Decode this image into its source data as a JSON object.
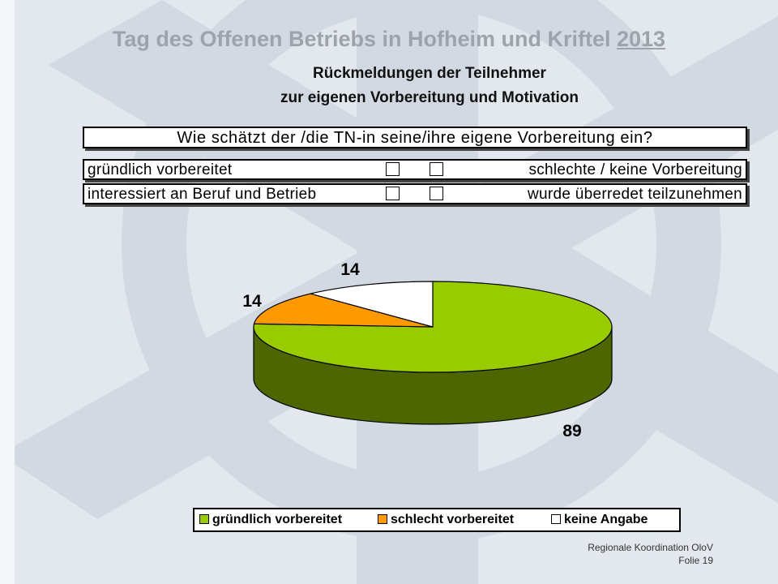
{
  "header": {
    "title_main": "Tag des Offenen Betriebs in Hofheim und Kriftel",
    "title_year": "2013",
    "subtitle_line1": "Rückmeldungen der Teilnehmer",
    "subtitle_line2": "zur eigenen Vorbereitung und Motivation"
  },
  "survey": {
    "question": "Wie schätzt der /die TN-in seine/ihre eigene Vorbereitung ein?",
    "rows": [
      {
        "left": "gründlich vorbereitet",
        "right": "schlechte / keine Vorbereitung"
      },
      {
        "left": "interessiert an Beruf und Betrieb",
        "right": "wurde überredet teilzunehmen"
      }
    ]
  },
  "chart_data": {
    "type": "pie",
    "style": "3d",
    "slices": [
      {
        "label": "gründlich vorbereitet",
        "value": 89,
        "color": "#99cc00",
        "side_color": "#4d6600"
      },
      {
        "label": "schlecht vorbereitet",
        "value": 14,
        "color": "#ff9900",
        "side_color": "#b36b00"
      },
      {
        "label": "keine Angabe",
        "value": 14,
        "color": "#ffffff",
        "side_color": "#cccccc"
      }
    ],
    "data_labels": [
      "89",
      "14",
      "14"
    ],
    "legend_position": "bottom"
  },
  "footer": {
    "org": "Regionale Koordination OloV",
    "slide": "Folie 19"
  },
  "colors": {
    "background": "#e3e7ee",
    "watermark": "#d2d8e2",
    "heading": "#9ea3ab"
  }
}
